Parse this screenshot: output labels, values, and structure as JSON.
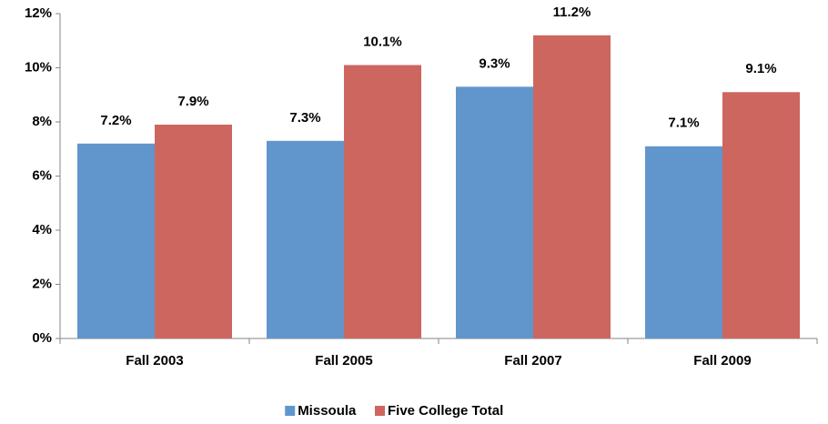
{
  "chart_data": {
    "type": "bar",
    "categories": [
      "Fall 2003",
      "Fall 2005",
      "Fall 2007",
      "Fall 2009"
    ],
    "series": [
      {
        "name": "Missoula",
        "color": "#6096cc",
        "values": [
          7.2,
          7.3,
          9.3,
          7.1
        ],
        "value_labels": [
          "7.2%",
          "7.3%",
          "9.3%",
          "7.1%"
        ]
      },
      {
        "name": "Five College Total",
        "color": "#cd665f",
        "values": [
          7.9,
          10.1,
          11.2,
          9.1
        ],
        "value_labels": [
          "7.9%",
          "10.1%",
          "11.2%",
          "9.1%"
        ]
      }
    ],
    "ylim": [
      0,
      12
    ],
    "yticks": [
      {
        "value": 0,
        "label": "0%"
      },
      {
        "value": 2,
        "label": "2%"
      },
      {
        "value": 4,
        "label": "4%"
      },
      {
        "value": 6,
        "label": "6%"
      },
      {
        "value": 8,
        "label": "8%"
      },
      {
        "value": 10,
        "label": "10%"
      },
      {
        "value": 12,
        "label": "12%"
      }
    ],
    "grid": false,
    "legend": "bottom"
  }
}
